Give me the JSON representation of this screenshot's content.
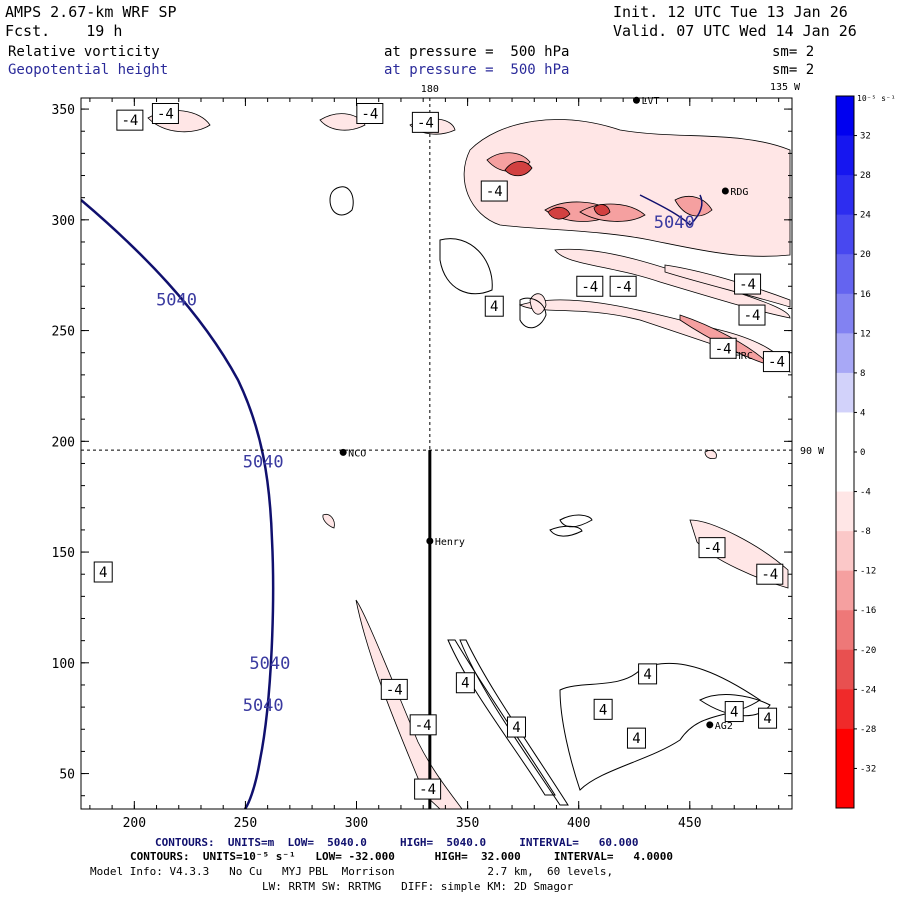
{
  "header": {
    "model_title": "AMPS 2.67-km WRF SP",
    "forecast": "Fcst.    19 h",
    "init": "Init. 12 UTC Tue 13 Jan 26",
    "valid": "Valid. 07 UTC Wed 14 Jan 26",
    "field1_name": "Relative vorticity",
    "field1_level": "at pressure =  500 hPa",
    "field1_sm": "sm= 2",
    "field2_name": "Geopotential height",
    "field2_level": "at pressure =  500 hPa",
    "field2_sm": "sm= 2"
  },
  "footer": {
    "contours1": "CONTOURS:  UNITS=m  LOW=  5040.0     HIGH=  5040.0     INTERVAL=   60.000",
    "contours2": "CONTOURS:  UNITS=10⁻⁵ s⁻¹   LOW= -32.000      HIGH=  32.000     INTERVAL=   4.0000",
    "model_info": "Model Info: V4.3.3   No Cu   MYJ PBL  Morrison              2.7 km,  60 levels,",
    "physics": "LW: RRTM SW: RRTMG   DIFF: simple KM: 2D Smagor"
  },
  "colors": {
    "height_contour": "#10106e",
    "vort_line": "#000000",
    "neg_fill_light": "#ffe6e6",
    "neg_fill_mid": "#f5a0a0",
    "neg_fill_dark": "#d24040"
  },
  "chart_data": {
    "type": "contour",
    "title": "Relative vorticity / Geopotential height at 500 hPa",
    "x_axis": {
      "ticks": [
        200,
        250,
        300,
        350,
        400,
        450
      ],
      "range": [
        176,
        496
      ]
    },
    "y_axis": {
      "ticks": [
        50,
        100,
        150,
        200,
        250,
        300,
        350
      ],
      "range": [
        34,
        355
      ]
    },
    "reference_lines": {
      "longitude_180": "180",
      "longitude_135W": "135 W",
      "longitude_90W": "90 W",
      "lon180_x": 333,
      "lat90W_y": 196
    },
    "stations": [
      {
        "name": "NCO",
        "x": 294,
        "y": 195
      },
      {
        "name": "Henry",
        "x": 333,
        "y": 155
      },
      {
        "name": "RDG",
        "x": 466,
        "y": 313
      },
      {
        "name": "HRC",
        "x": 468,
        "y": 239
      },
      {
        "name": "AG2",
        "x": 459,
        "y": 72
      },
      {
        "name": "LVT",
        "x": 426,
        "y": 354
      }
    ],
    "height_contour_labels": [
      {
        "text": "5040",
        "x": 219,
        "y": 264
      },
      {
        "text": "5040",
        "x": 258,
        "y": 191
      },
      {
        "text": "5040",
        "x": 261,
        "y": 100
      },
      {
        "text": "5040",
        "x": 258,
        "y": 81
      },
      {
        "text": "5040",
        "x": 443,
        "y": 299
      }
    ],
    "vorticity_labels": [
      {
        "text": "-4",
        "x": 198,
        "y": 345
      },
      {
        "text": "-4",
        "x": 214,
        "y": 348
      },
      {
        "text": "-4",
        "x": 306,
        "y": 348
      },
      {
        "text": "-4",
        "x": 331,
        "y": 344
      },
      {
        "text": "-4",
        "x": 362,
        "y": 313
      },
      {
        "text": "4",
        "x": 362,
        "y": 261
      },
      {
        "text": "-4",
        "x": 405,
        "y": 270
      },
      {
        "text": "-4",
        "x": 420,
        "y": 270
      },
      {
        "text": "-4",
        "x": 476,
        "y": 271
      },
      {
        "text": "-4",
        "x": 478,
        "y": 257
      },
      {
        "text": "-4",
        "x": 465,
        "y": 242
      },
      {
        "text": "-4",
        "x": 489,
        "y": 236
      },
      {
        "text": "-4",
        "x": 460,
        "y": 152
      },
      {
        "text": "-4",
        "x": 486,
        "y": 140
      },
      {
        "text": "4",
        "x": 186,
        "y": 141
      },
      {
        "text": "-4",
        "x": 317,
        "y": 88
      },
      {
        "text": "-4",
        "x": 330,
        "y": 72
      },
      {
        "text": "-4",
        "x": 332,
        "y": 43
      },
      {
        "text": "4",
        "x": 349,
        "y": 91
      },
      {
        "text": "4",
        "x": 372,
        "y": 71
      },
      {
        "text": "4",
        "x": 411,
        "y": 79
      },
      {
        "text": "4",
        "x": 431,
        "y": 95
      },
      {
        "text": "4",
        "x": 426,
        "y": 66
      },
      {
        "text": "4",
        "x": 470,
        "y": 78
      },
      {
        "text": "4",
        "x": 485,
        "y": 75
      }
    ],
    "colorbar": {
      "unit": "10⁻⁵ s⁻¹",
      "levels": [
        32,
        28,
        24,
        20,
        16,
        12,
        8,
        4,
        0,
        -4,
        -8,
        -12,
        -16,
        -20,
        -24,
        -28,
        -32
      ],
      "colors": [
        "#0000f0",
        "#1616f0",
        "#2d2df0",
        "#4848f0",
        "#6464f0",
        "#8282f2",
        "#a8a8f6",
        "#d2d2fa",
        "#ffffff",
        "#ffffff",
        "#ffe6e6",
        "#fbc8c8",
        "#f5a0a0",
        "#ee7878",
        "#e85050",
        "#f02a2a",
        "#ff0000",
        "#ff0000"
      ]
    }
  }
}
